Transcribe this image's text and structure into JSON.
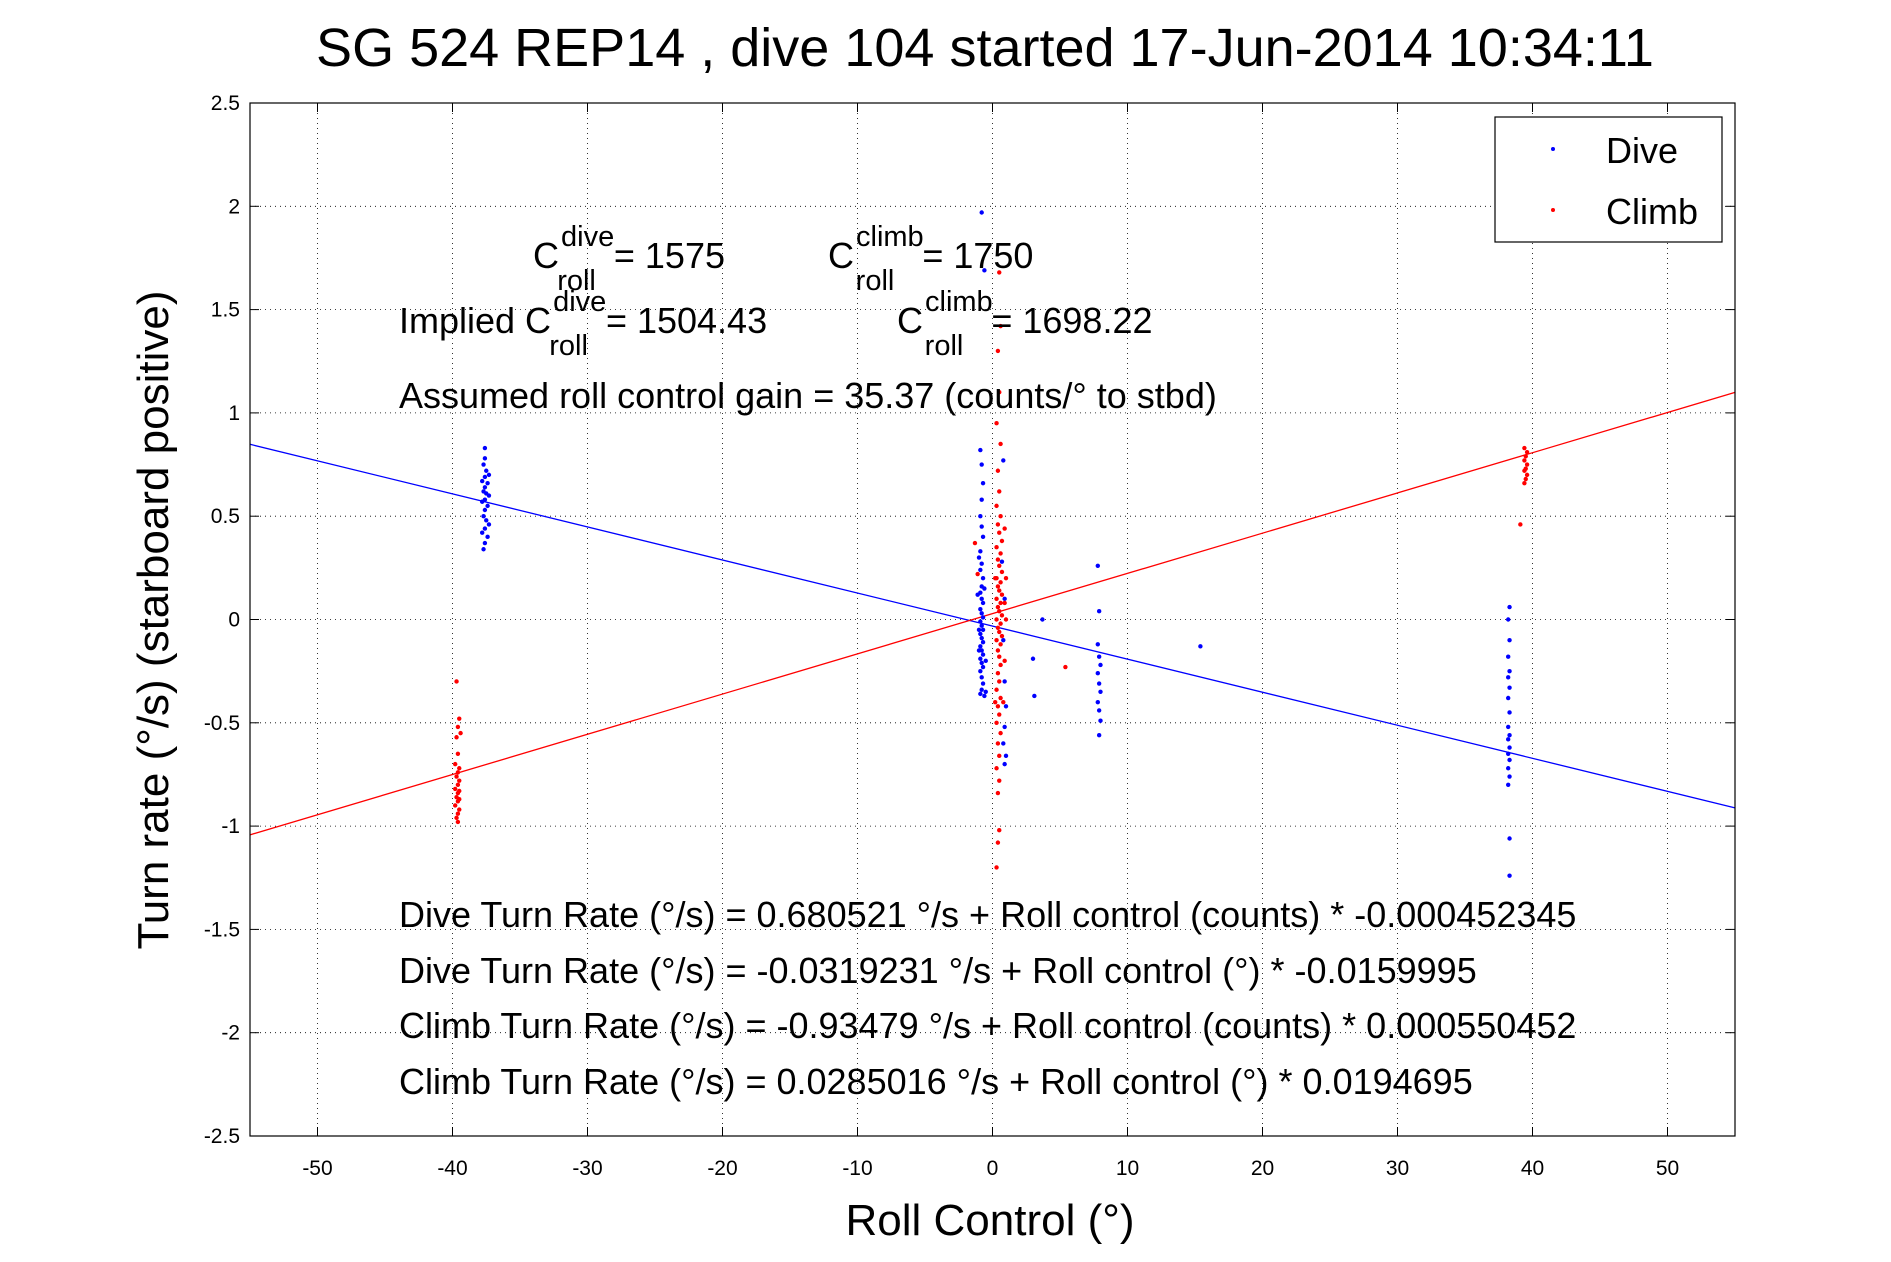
{
  "chart_data": {
    "type": "scatter",
    "title": "SG 524   REP14  , dive 104 started 17-Jun-2014 10:34:11",
    "xlabel": "Roll Control (°)",
    "ylabel": "Turn rate (°/s) (starboard positive)",
    "xlim": [
      -55,
      55
    ],
    "ylim": [
      -2.5,
      2.5
    ],
    "xticks": [
      -50,
      -40,
      -30,
      -20,
      -10,
      0,
      10,
      20,
      30,
      40,
      50
    ],
    "yticks": [
      -2.5,
      -2,
      -1.5,
      -1,
      -0.5,
      0,
      0.5,
      1,
      1.5,
      2,
      2.5
    ],
    "xtick_labels": [
      "-50",
      "-40",
      "-30",
      "-20",
      "-10",
      "0",
      "10",
      "20",
      "30",
      "40",
      "50"
    ],
    "ytick_labels": [
      "-2.5",
      "-2",
      "-1.5",
      "-1",
      "-0.5",
      "0",
      "0.5",
      "1",
      "1.5",
      "2",
      "2.5"
    ],
    "grid": true,
    "legend_position": "top-right",
    "series": [
      {
        "name": "Dive",
        "color": "#0000ff",
        "marker": "point",
        "points": [
          [
            -37.6,
            0.83
          ],
          [
            -37.6,
            0.78
          ],
          [
            -37.7,
            0.75
          ],
          [
            -37.5,
            0.72
          ],
          [
            -37.3,
            0.7
          ],
          [
            -37.6,
            0.69
          ],
          [
            -37.8,
            0.67
          ],
          [
            -37.4,
            0.66
          ],
          [
            -37.6,
            0.64
          ],
          [
            -37.7,
            0.62
          ],
          [
            -37.5,
            0.61
          ],
          [
            -37.3,
            0.6
          ],
          [
            -37.6,
            0.58
          ],
          [
            -37.8,
            0.57
          ],
          [
            -37.4,
            0.55
          ],
          [
            -37.6,
            0.53
          ],
          [
            -37.7,
            0.5
          ],
          [
            -37.5,
            0.48
          ],
          [
            -37.3,
            0.46
          ],
          [
            -37.6,
            0.44
          ],
          [
            -37.8,
            0.42
          ],
          [
            -37.4,
            0.4
          ],
          [
            -37.6,
            0.37
          ],
          [
            -37.7,
            0.34
          ],
          [
            -0.8,
            1.97
          ],
          [
            -0.6,
            1.69
          ],
          [
            -0.9,
            0.82
          ],
          [
            -0.8,
            0.75
          ],
          [
            -0.7,
            0.66
          ],
          [
            -0.8,
            0.58
          ],
          [
            -0.9,
            0.5
          ],
          [
            -0.8,
            0.45
          ],
          [
            -0.7,
            0.4
          ],
          [
            -0.9,
            0.33
          ],
          [
            -0.8,
            0.27
          ],
          [
            -0.9,
            0.24
          ],
          [
            -0.7,
            0.2
          ],
          [
            -0.8,
            0.16
          ],
          [
            -0.9,
            0.13
          ],
          [
            -0.8,
            0.1
          ],
          [
            -0.7,
            0.08
          ],
          [
            -0.9,
            0.05
          ],
          [
            -0.8,
            0.03
          ],
          [
            -0.7,
            0.01
          ],
          [
            -0.9,
            -0.01
          ],
          [
            -0.8,
            -0.03
          ],
          [
            -0.7,
            -0.05
          ],
          [
            -0.9,
            -0.07
          ],
          [
            -0.8,
            -0.09
          ],
          [
            -0.7,
            -0.11
          ],
          [
            -0.9,
            -0.13
          ],
          [
            -0.8,
            -0.15
          ],
          [
            -0.7,
            -0.17
          ],
          [
            -0.9,
            -0.19
          ],
          [
            -0.8,
            -0.21
          ],
          [
            -0.7,
            -0.23
          ],
          [
            -0.9,
            -0.25
          ],
          [
            -0.8,
            -0.28
          ],
          [
            -0.7,
            -0.31
          ],
          [
            -0.8,
            -0.34
          ],
          [
            -0.9,
            -0.36
          ],
          [
            -0.6,
            -0.37
          ],
          [
            -0.5,
            -0.35
          ],
          [
            -1.0,
            0.3
          ],
          [
            -1.0,
            -0.05
          ],
          [
            -0.6,
            0.15
          ],
          [
            -0.5,
            -0.2
          ],
          [
            -1.1,
            0.12
          ],
          [
            -1.0,
            -0.15
          ],
          [
            0.7,
            0.28
          ],
          [
            0.9,
            0.1
          ],
          [
            0.8,
            -0.1
          ],
          [
            0.9,
            -0.3
          ],
          [
            1.0,
            -0.42
          ],
          [
            0.9,
            -0.52
          ],
          [
            0.8,
            -0.6
          ],
          [
            1.0,
            -0.66
          ],
          [
            0.9,
            -0.7
          ],
          [
            0.8,
            0.77
          ],
          [
            3.0,
            -0.19
          ],
          [
            3.1,
            -0.37
          ],
          [
            3.7,
            0.0
          ],
          [
            7.8,
            0.26
          ],
          [
            7.9,
            0.04
          ],
          [
            7.8,
            -0.12
          ],
          [
            7.9,
            -0.18
          ],
          [
            8.0,
            -0.22
          ],
          [
            7.8,
            -0.26
          ],
          [
            7.9,
            -0.31
          ],
          [
            8.0,
            -0.35
          ],
          [
            7.8,
            -0.4
          ],
          [
            7.9,
            -0.44
          ],
          [
            8.0,
            -0.49
          ],
          [
            7.9,
            -0.56
          ],
          [
            15.4,
            -0.13
          ],
          [
            38.3,
            0.06
          ],
          [
            38.2,
            0.0
          ],
          [
            38.3,
            -0.1
          ],
          [
            38.2,
            -0.18
          ],
          [
            38.3,
            -0.25
          ],
          [
            38.2,
            -0.28
          ],
          [
            38.3,
            -0.33
          ],
          [
            38.2,
            -0.38
          ],
          [
            38.3,
            -0.45
          ],
          [
            38.2,
            -0.52
          ],
          [
            38.3,
            -0.56
          ],
          [
            38.2,
            -0.58
          ],
          [
            38.3,
            -0.62
          ],
          [
            38.2,
            -0.65
          ],
          [
            38.3,
            -0.68
          ],
          [
            38.2,
            -0.72
          ],
          [
            38.3,
            -0.76
          ],
          [
            38.2,
            -0.8
          ],
          [
            38.3,
            -1.06
          ],
          [
            38.3,
            -1.24
          ]
        ]
      },
      {
        "name": "Climb",
        "color": "#ff0000",
        "marker": "point",
        "points": [
          [
            -39.7,
            -0.3
          ],
          [
            -39.5,
            -0.48
          ],
          [
            -39.6,
            -0.52
          ],
          [
            -39.4,
            -0.55
          ],
          [
            -39.7,
            -0.57
          ],
          [
            -39.6,
            -0.65
          ],
          [
            -39.8,
            -0.7
          ],
          [
            -39.5,
            -0.72
          ],
          [
            -39.6,
            -0.74
          ],
          [
            -39.7,
            -0.76
          ],
          [
            -39.5,
            -0.78
          ],
          [
            -39.6,
            -0.8
          ],
          [
            -39.8,
            -0.82
          ],
          [
            -39.5,
            -0.83
          ],
          [
            -39.6,
            -0.84
          ],
          [
            -39.7,
            -0.86
          ],
          [
            -39.5,
            -0.87
          ],
          [
            -39.6,
            -0.88
          ],
          [
            -39.8,
            -0.9
          ],
          [
            -39.5,
            -0.92
          ],
          [
            -39.6,
            -0.94
          ],
          [
            -39.7,
            -0.96
          ],
          [
            -39.6,
            -0.98
          ],
          [
            0.5,
            1.68
          ],
          [
            0.6,
            1.42
          ],
          [
            0.4,
            1.3
          ],
          [
            0.5,
            1.1
          ],
          [
            0.3,
            0.95
          ],
          [
            0.6,
            0.85
          ],
          [
            0.4,
            0.72
          ],
          [
            0.5,
            0.62
          ],
          [
            0.3,
            0.55
          ],
          [
            0.6,
            0.5
          ],
          [
            0.4,
            0.46
          ],
          [
            0.5,
            0.42
          ],
          [
            0.7,
            0.38
          ],
          [
            0.3,
            0.35
          ],
          [
            0.6,
            0.32
          ],
          [
            0.4,
            0.29
          ],
          [
            0.5,
            0.26
          ],
          [
            0.7,
            0.23
          ],
          [
            0.3,
            0.2
          ],
          [
            0.6,
            0.18
          ],
          [
            0.4,
            0.16
          ],
          [
            0.5,
            0.14
          ],
          [
            0.7,
            0.12
          ],
          [
            0.3,
            0.1
          ],
          [
            0.6,
            0.08
          ],
          [
            0.4,
            0.06
          ],
          [
            0.5,
            0.04
          ],
          [
            0.7,
            0.02
          ],
          [
            0.3,
            0.0
          ],
          [
            0.6,
            -0.02
          ],
          [
            0.4,
            -0.04
          ],
          [
            0.5,
            -0.06
          ],
          [
            0.7,
            -0.08
          ],
          [
            0.3,
            -0.1
          ],
          [
            0.6,
            -0.12
          ],
          [
            0.4,
            -0.15
          ],
          [
            0.5,
            -0.18
          ],
          [
            0.6,
            -0.22
          ],
          [
            0.4,
            -0.26
          ],
          [
            0.5,
            -0.3
          ],
          [
            0.3,
            -0.34
          ],
          [
            0.6,
            -0.38
          ],
          [
            0.4,
            -0.42
          ],
          [
            0.5,
            -0.46
          ],
          [
            0.3,
            -0.5
          ],
          [
            0.6,
            -0.55
          ],
          [
            0.4,
            -0.6
          ],
          [
            0.5,
            -0.66
          ],
          [
            0.3,
            -0.72
          ],
          [
            0.5,
            -0.78
          ],
          [
            0.4,
            -0.84
          ],
          [
            0.5,
            -1.02
          ],
          [
            0.4,
            -1.08
          ],
          [
            0.3,
            -1.2
          ],
          [
            -1.3,
            0.37
          ],
          [
            -1.1,
            0.22
          ],
          [
            0.9,
            0.44
          ],
          [
            0.9,
            0.08
          ],
          [
            1.0,
            0.2
          ],
          [
            0.9,
            -0.2
          ],
          [
            0.8,
            -0.4
          ],
          [
            1.0,
            0.0
          ],
          [
            0.2,
            0.2
          ],
          [
            0.2,
            -0.4
          ],
          [
            5.4,
            -0.23
          ],
          [
            39.4,
            0.83
          ],
          [
            39.6,
            0.81
          ],
          [
            39.5,
            0.79
          ],
          [
            39.4,
            0.77
          ],
          [
            39.6,
            0.75
          ],
          [
            39.5,
            0.73
          ],
          [
            39.4,
            0.72
          ],
          [
            39.6,
            0.7
          ],
          [
            39.5,
            0.68
          ],
          [
            39.4,
            0.66
          ],
          [
            39.1,
            0.46
          ]
        ]
      }
    ],
    "fit_lines": [
      {
        "name": "Dive fit",
        "color": "#0000ff",
        "intercept": -0.0319231,
        "slope": -0.0159995
      },
      {
        "name": "Climb fit",
        "color": "#ff0000",
        "intercept": 0.0285016,
        "slope": 0.0194695
      }
    ],
    "annotations": {
      "c_roll_dive_base": "C",
      "c_roll_dive_sup": "dive",
      "c_roll_dive_sub": "roll",
      "c_roll_dive_value": "= 1575",
      "c_roll_climb_base": "C",
      "c_roll_climb_sup": "climb",
      "c_roll_climb_sub": "roll",
      "c_roll_climb_value": "= 1750",
      "implied_prefix": "Implied C",
      "implied_dive_sup": "dive",
      "implied_dive_sub": "roll",
      "implied_dive_value": "= 1504.43",
      "implied_climb_base": "C",
      "implied_climb_sup": "climb",
      "implied_climb_sub": "roll",
      "implied_climb_value": "= 1698.22",
      "gain": "Assumed roll control gain = 35.37 (counts/° to stbd)",
      "eq1": "Dive Turn Rate (°/s) = 0.680521 °/s + Roll control (counts) * -0.000452345",
      "eq2": "Dive Turn Rate (°/s) = -0.0319231 °/s + Roll control (°) * -0.0159995",
      "eq3": "Climb Turn Rate (°/s) = -0.93479 °/s + Roll control (counts) * 0.000550452",
      "eq4": "Climb Turn Rate (°/s) = 0.0285016 °/s + Roll control (°) * 0.0194695"
    }
  }
}
